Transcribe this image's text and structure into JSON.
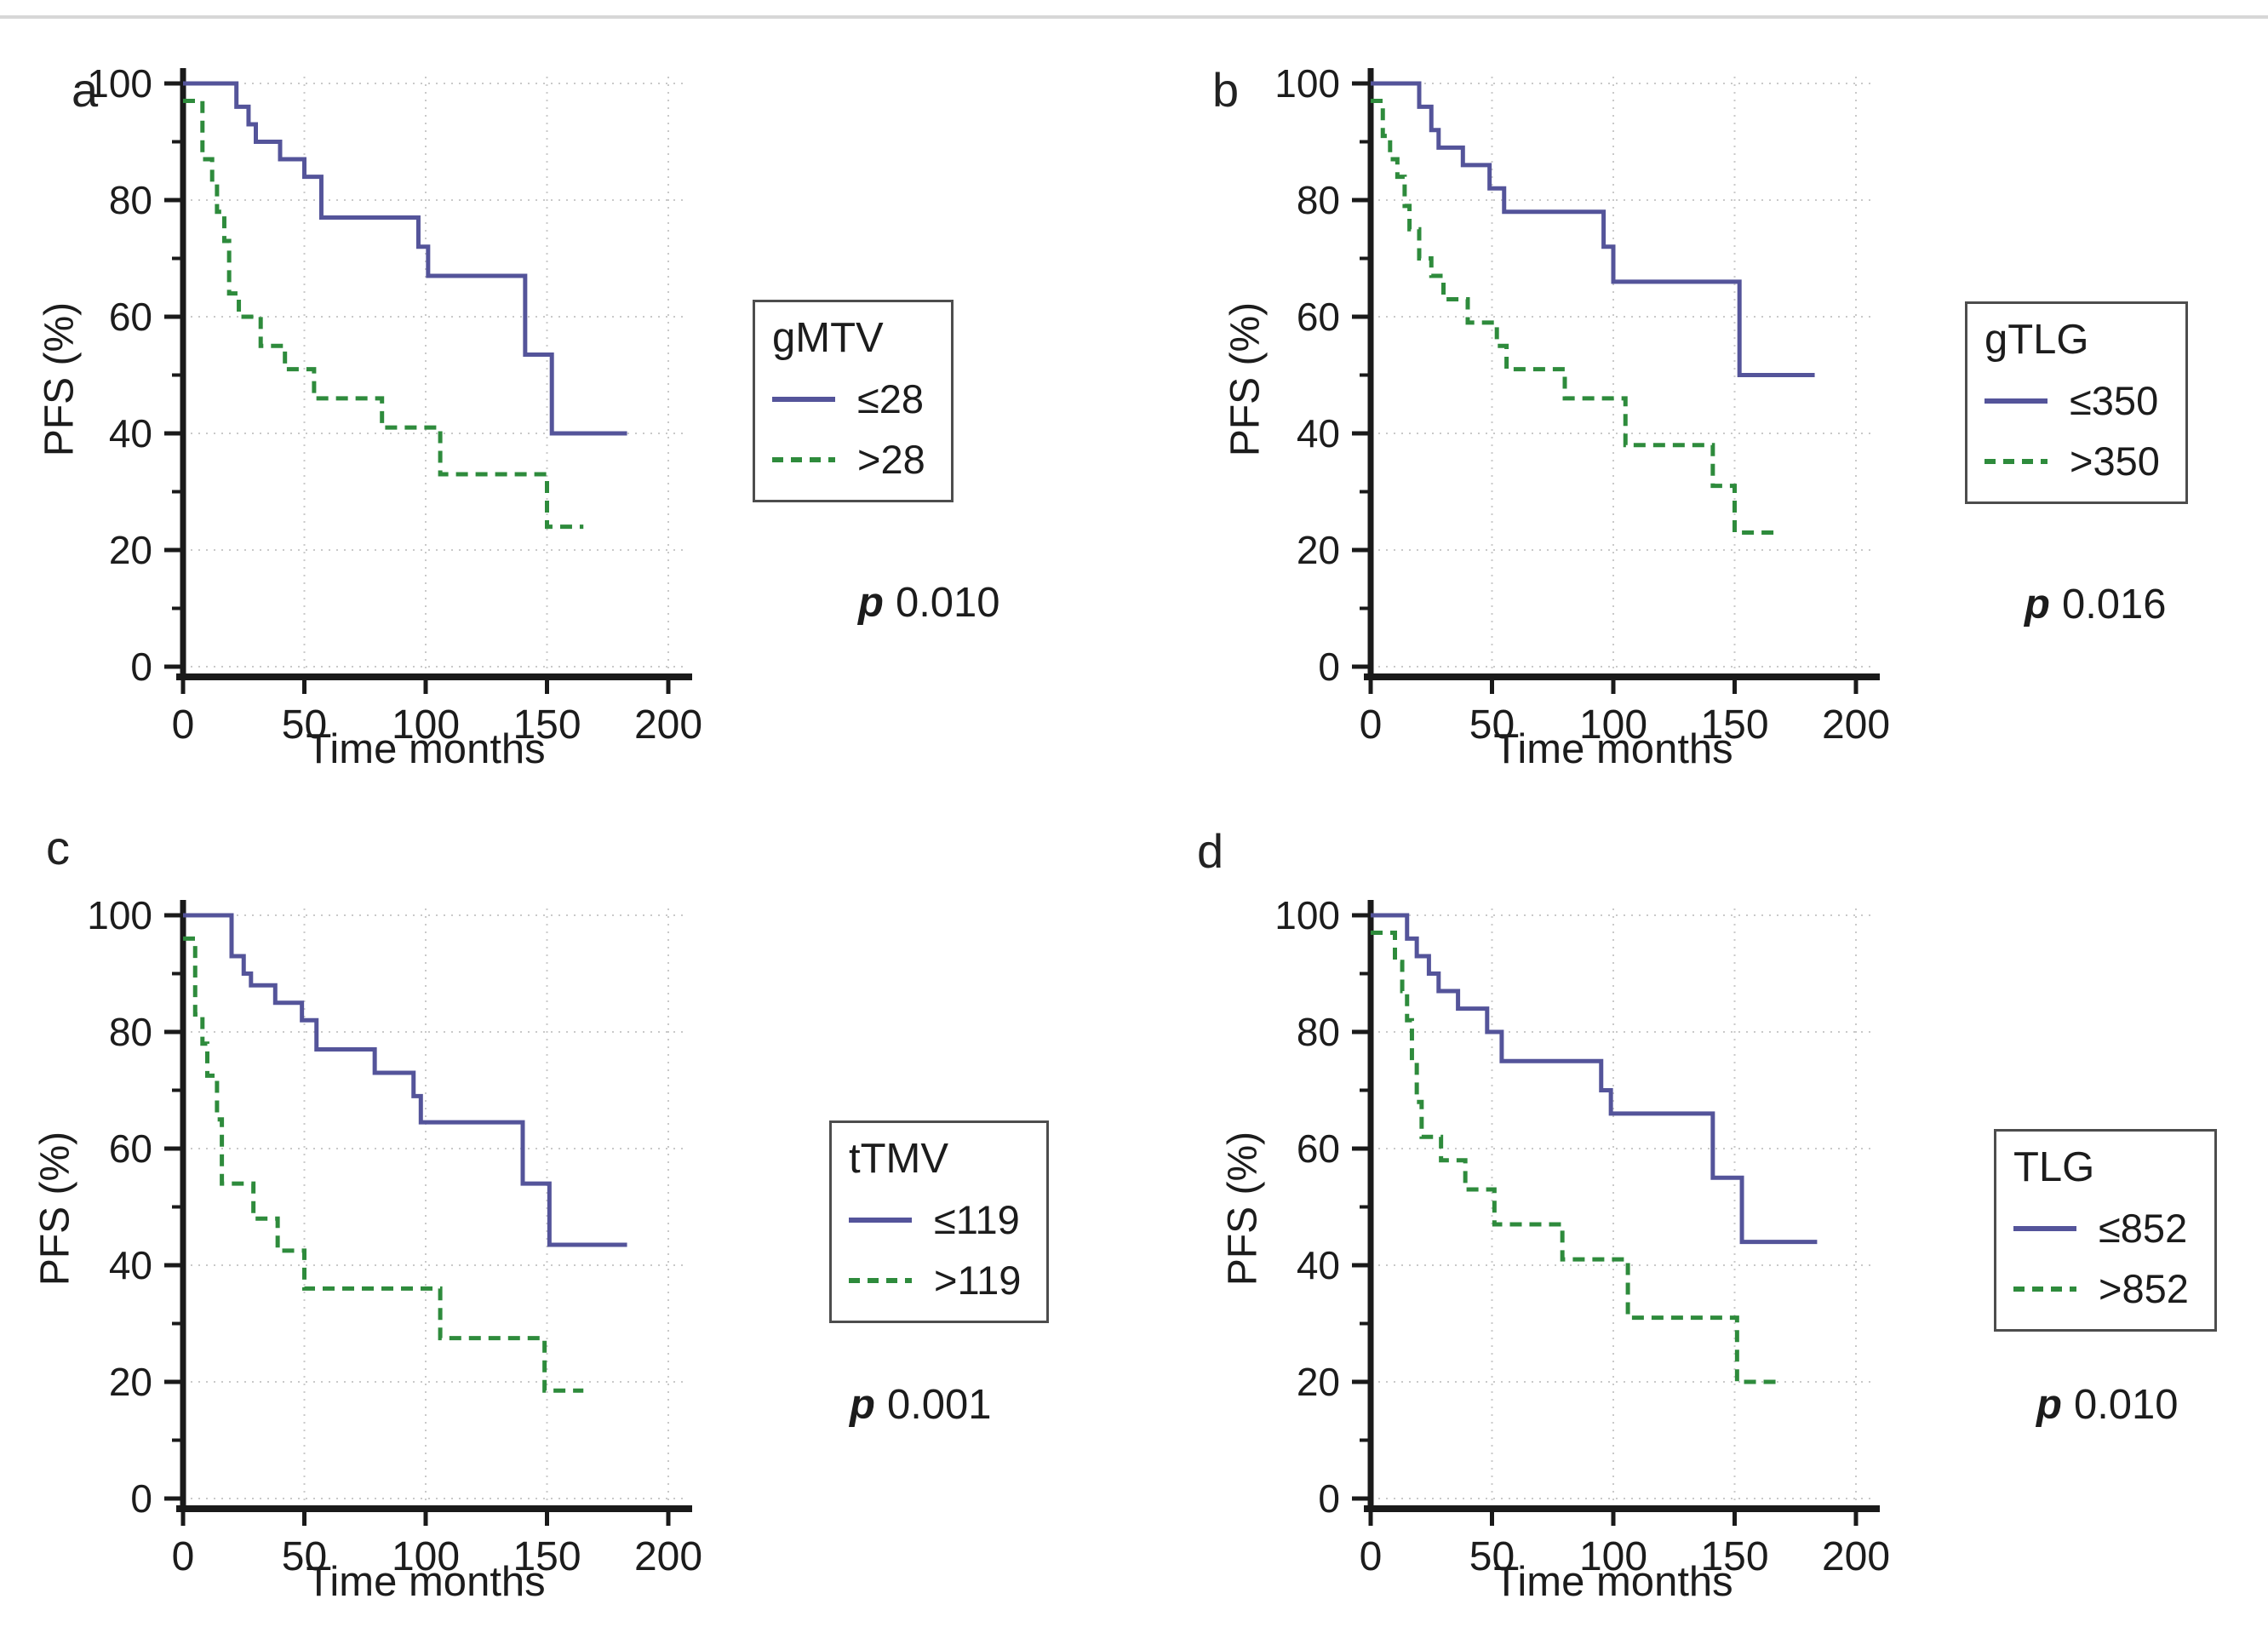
{
  "figure": {
    "description": "Kaplan-Meier progression-free survival curves, four panels",
    "panel_letters": [
      "a",
      "b",
      "c",
      "d"
    ]
  },
  "colors": {
    "group_low": "#54549a",
    "group_high": "#2e8b3c",
    "axis": "#1a1a1a",
    "grid": "#c9c9c9",
    "text": "#1c1c1c",
    "legend_border": "#4d4d4d",
    "top_rule": "#d7d7d7",
    "background": "#ffffff"
  },
  "chart_data": [
    {
      "panel_label": "a",
      "type": "line",
      "subtype": "kaplan_meier_step",
      "legend_title": "gMTV",
      "p_label": "p",
      "p_value": "0.010",
      "xlabel": "Time months",
      "ylabel": "PFS (%)",
      "xlim": [
        0,
        200
      ],
      "ylim": [
        0,
        100
      ],
      "x_ticks": [
        0,
        50,
        100,
        150,
        200
      ],
      "y_ticks": [
        0,
        20,
        40,
        60,
        80,
        100
      ],
      "grid": "dotted",
      "legend_position": "right",
      "series": [
        {
          "name": "≤28",
          "group": "low",
          "line_style": "solid",
          "steps": [
            [
              0,
              100
            ],
            [
              22,
              96
            ],
            [
              27,
              93
            ],
            [
              30,
              90
            ],
            [
              40,
              87
            ],
            [
              50,
              84
            ],
            [
              57,
              77
            ],
            [
              97,
              72
            ],
            [
              101,
              67
            ],
            [
              141,
              53.5
            ],
            [
              152,
              40
            ]
          ],
          "end_time": 183
        },
        {
          "name": ">28",
          "group": "high",
          "line_style": "dashed",
          "steps": [
            [
              0,
              97
            ],
            [
              8,
              87
            ],
            [
              12,
              83
            ],
            [
              14,
              78
            ],
            [
              17,
              73
            ],
            [
              19,
              64
            ],
            [
              23,
              60
            ],
            [
              32,
              55
            ],
            [
              42,
              51
            ],
            [
              54,
              46
            ],
            [
              82,
              41
            ],
            [
              106,
              33
            ],
            [
              150,
              24
            ]
          ],
          "end_time": 165
        }
      ]
    },
    {
      "panel_label": "b",
      "type": "line",
      "subtype": "kaplan_meier_step",
      "legend_title": "gTLG",
      "p_label": "p",
      "p_value": "0.016",
      "xlabel": "Time months",
      "ylabel": "PFS (%)",
      "xlim": [
        0,
        200
      ],
      "ylim": [
        0,
        100
      ],
      "x_ticks": [
        0,
        50,
        100,
        150,
        200
      ],
      "y_ticks": [
        0,
        20,
        40,
        60,
        80,
        100
      ],
      "grid": "dotted",
      "legend_position": "right",
      "series": [
        {
          "name": "≤350",
          "group": "low",
          "line_style": "solid",
          "steps": [
            [
              0,
              100
            ],
            [
              20,
              96
            ],
            [
              25,
              92
            ],
            [
              28,
              89
            ],
            [
              38,
              86
            ],
            [
              49,
              82
            ],
            [
              55,
              78
            ],
            [
              96,
              72
            ],
            [
              100,
              66
            ],
            [
              152,
              50
            ]
          ],
          "end_time": 183
        },
        {
          "name": ">350",
          "group": "high",
          "line_style": "dashed",
          "steps": [
            [
              0,
              97
            ],
            [
              5,
              91
            ],
            [
              8,
              87
            ],
            [
              11,
              84
            ],
            [
              14,
              79
            ],
            [
              16,
              75
            ],
            [
              20,
              70
            ],
            [
              25,
              67
            ],
            [
              30,
              63
            ],
            [
              40,
              59
            ],
            [
              52,
              55
            ],
            [
              56,
              51
            ],
            [
              80,
              46
            ],
            [
              105,
              38
            ],
            [
              141,
              31
            ],
            [
              150,
              23
            ]
          ],
          "end_time": 167
        }
      ]
    },
    {
      "panel_label": "c",
      "type": "line",
      "subtype": "kaplan_meier_step",
      "legend_title": "tTMV",
      "p_label": "p",
      "p_value": "0.001",
      "xlabel": "Time months",
      "ylabel": "PFS (%)",
      "xlim": [
        0,
        200
      ],
      "ylim": [
        0,
        100
      ],
      "x_ticks": [
        0,
        50,
        100,
        150,
        200
      ],
      "y_ticks": [
        0,
        20,
        40,
        60,
        80,
        100
      ],
      "grid": "dotted",
      "legend_position": "right",
      "series": [
        {
          "name": "≤119",
          "group": "low",
          "line_style": "solid",
          "steps": [
            [
              0,
              100
            ],
            [
              20,
              93
            ],
            [
              25,
              90
            ],
            [
              28,
              88
            ],
            [
              38,
              85
            ],
            [
              49,
              82
            ],
            [
              55,
              77
            ],
            [
              79,
              73
            ],
            [
              95,
              69
            ],
            [
              98,
              64.5
            ],
            [
              140,
              54
            ],
            [
              151,
              43.5
            ]
          ],
          "end_time": 183
        },
        {
          "name": ">119",
          "group": "high",
          "line_style": "dashed",
          "steps": [
            [
              0,
              96
            ],
            [
              5,
              83
            ],
            [
              8,
              78
            ],
            [
              10,
              72.5
            ],
            [
              14,
              65
            ],
            [
              16,
              54
            ],
            [
              29,
              48
            ],
            [
              39,
              42.5
            ],
            [
              50,
              36
            ],
            [
              106,
              27.5
            ],
            [
              149,
              18.5
            ]
          ],
          "end_time": 165
        }
      ]
    },
    {
      "panel_label": "d",
      "type": "line",
      "subtype": "kaplan_meier_step",
      "legend_title": "TLG",
      "p_label": "p",
      "p_value": "0.010",
      "xlabel": "Time months",
      "ylabel": "PFS (%)",
      "xlim": [
        0,
        200
      ],
      "ylim": [
        0,
        100
      ],
      "x_ticks": [
        0,
        50,
        100,
        150,
        200
      ],
      "y_ticks": [
        0,
        20,
        40,
        60,
        80,
        100
      ],
      "grid": "dotted",
      "legend_position": "right",
      "series": [
        {
          "name": "≤852",
          "group": "low",
          "line_style": "solid",
          "steps": [
            [
              0,
              100
            ],
            [
              15,
              96
            ],
            [
              19,
              93
            ],
            [
              24,
              90
            ],
            [
              28,
              87
            ],
            [
              36,
              84
            ],
            [
              48,
              80
            ],
            [
              54,
              75
            ],
            [
              95,
              70
            ],
            [
              99,
              66
            ],
            [
              141,
              55
            ],
            [
              153,
              44
            ]
          ],
          "end_time": 184
        },
        {
          "name": ">852",
          "group": "high",
          "line_style": "dashed",
          "steps": [
            [
              0,
              97
            ],
            [
              10,
              92
            ],
            [
              13,
              87
            ],
            [
              15,
              82
            ],
            [
              17,
              75
            ],
            [
              19,
              68
            ],
            [
              21,
              62
            ],
            [
              29,
              58
            ],
            [
              39,
              53
            ],
            [
              51,
              47
            ],
            [
              79,
              41
            ],
            [
              106,
              31
            ],
            [
              151,
              20
            ]
          ],
          "end_time": 167
        }
      ]
    }
  ]
}
